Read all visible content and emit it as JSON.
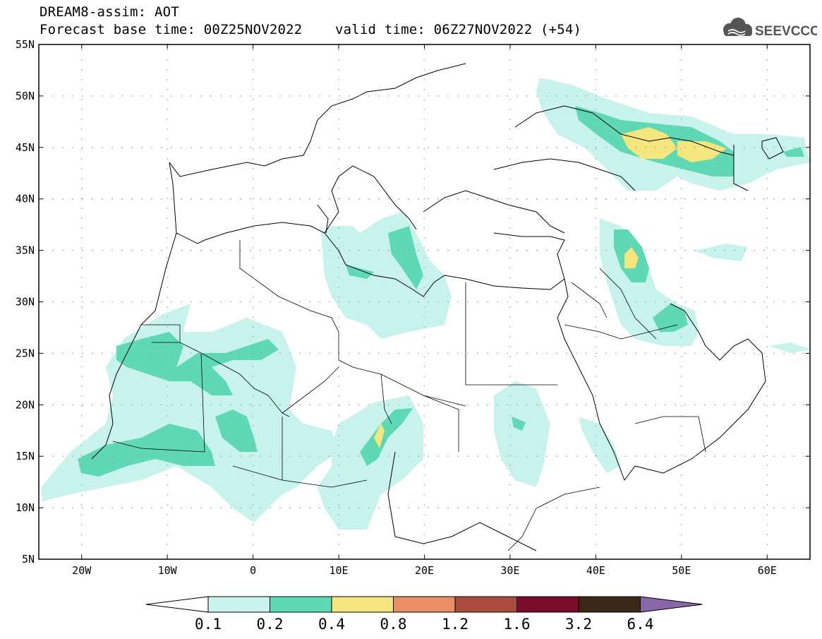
{
  "header": {
    "title": "DREAM8-assim: AOT",
    "subtitle": "Forecast base time: 00Z25NOV2022    valid time: 06Z27NOV2022 (+54)",
    "logo_text": "SEEVCCC"
  },
  "map": {
    "lat_labels": [
      "55N",
      "50N",
      "45N",
      "40N",
      "35N",
      "30N",
      "25N",
      "20N",
      "15N",
      "10N",
      "5N"
    ],
    "lat_values": [
      55,
      50,
      45,
      40,
      35,
      30,
      25,
      20,
      15,
      10,
      5
    ],
    "lon_labels": [
      "20W",
      "10W",
      "0",
      "10E",
      "20E",
      "30E",
      "40E",
      "50E",
      "60E"
    ],
    "lon_values": [
      -20,
      -10,
      0,
      10,
      20,
      30,
      40,
      50,
      60
    ],
    "extent": {
      "lon_min": -25,
      "lon_max": 65,
      "lat_min": 5,
      "lat_max": 55
    }
  },
  "legend": {
    "labels": [
      "0.1",
      "0.2",
      "0.4",
      "0.8",
      "1.2",
      "1.6",
      "3.2",
      "6.4"
    ],
    "colors": [
      "#ffffff",
      "#c8f2ec",
      "#5fd8b4",
      "#f5e57d",
      "#e88f66",
      "#a94c3e",
      "#7b0d2d",
      "#3d2716",
      "#8a67a9"
    ]
  }
}
